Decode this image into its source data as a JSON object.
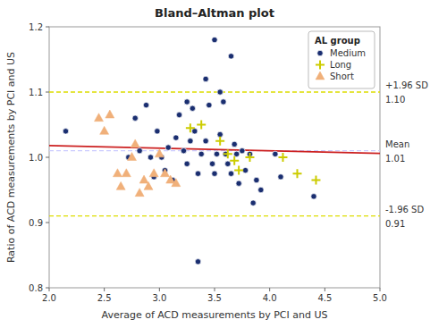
{
  "chart_data": {
    "type": "scatter",
    "title": "Bland–Altman plot",
    "xlabel": "Average of ACD measurements by PCI and US",
    "ylabel": "Ratio of ACD measurements by PCI and US",
    "xlim": [
      2.0,
      5.0
    ],
    "ylim": [
      0.8,
      1.2
    ],
    "xticks": [
      {
        "value": 2.0,
        "label": "2.0"
      },
      2.5,
      {
        "value": 3.0,
        "label": "3.0"
      },
      3.5,
      {
        "value": 4.0,
        "label": "4.0"
      },
      4.5,
      {
        "value": 5.0,
        "label": "5.0"
      }
    ],
    "yticks": [
      0.8,
      0.9,
      {
        "value": 1.0,
        "label": "1.0"
      },
      1.1,
      1.2
    ],
    "grid": false,
    "legend": "upper right",
    "legend_title": "AL group",
    "series": [
      {
        "name": "Medium",
        "color": "#1a2e70",
        "marker": "circle",
        "x": [
          2.15,
          2.72,
          2.78,
          2.82,
          2.88,
          2.92,
          2.95,
          2.98,
          3.02,
          3.05,
          3.08,
          3.12,
          3.15,
          3.18,
          3.22,
          3.25,
          3.28,
          3.3,
          3.32,
          3.35,
          3.38,
          3.42,
          3.45,
          3.48,
          3.5,
          3.52,
          3.55,
          3.58,
          3.6,
          3.62,
          3.65,
          3.68,
          3.7,
          3.72,
          3.75,
          3.78,
          3.82,
          3.85,
          3.88,
          3.92,
          4.05,
          4.1,
          4.4,
          3.5,
          3.65,
          3.42,
          3.55,
          3.25,
          3.35
        ],
        "values": [
          1.04,
          1.0,
          1.06,
          1.01,
          1.08,
          1.0,
          0.97,
          1.04,
          1.0,
          0.98,
          1.015,
          0.965,
          1.03,
          1.065,
          1.01,
          0.99,
          1.025,
          1.075,
          1.04,
          0.975,
          1.005,
          1.025,
          1.08,
          0.99,
          0.975,
          1.005,
          1.035,
          1.085,
          1.005,
          0.99,
          0.975,
          1.02,
          1.005,
          0.96,
          1.01,
          0.98,
          1.005,
          0.93,
          0.965,
          0.95,
          1.005,
          0.97,
          0.94,
          1.18,
          1.155,
          1.12,
          1.1,
          1.085,
          0.84
        ]
      },
      {
        "name": "Long",
        "color": "#cccc00",
        "marker": "plus",
        "x": [
          3.28,
          3.38,
          3.55,
          3.62,
          3.68,
          3.72,
          3.82,
          4.12,
          4.25,
          4.42
        ],
        "values": [
          1.045,
          1.05,
          1.025,
          1.005,
          0.995,
          0.98,
          1.0,
          1.0,
          0.975,
          0.965
        ]
      },
      {
        "name": "Short",
        "color": "#f0b07a",
        "marker": "triangle",
        "x": [
          2.45,
          2.5,
          2.55,
          2.62,
          2.65,
          2.7,
          2.75,
          2.78,
          2.82,
          2.86,
          2.9,
          2.95,
          3.0,
          3.05,
          3.1,
          3.15
        ],
        "values": [
          1.06,
          1.04,
          1.065,
          0.975,
          0.955,
          0.975,
          1.0,
          1.02,
          0.945,
          0.965,
          0.955,
          0.975,
          1.005,
          0.975,
          0.965,
          0.96
        ]
      }
    ],
    "reference_lines": [
      {
        "value": 1.1,
        "label": "+1.96 SD",
        "value_label": "1.10",
        "color": "#dddd00",
        "line_style": "dashed"
      },
      {
        "value": 1.01,
        "label": "Mean",
        "value_label": "1.01",
        "color": "#ccccff",
        "line_style": "dashed"
      },
      {
        "value": 0.91,
        "label": "-1.96 SD",
        "value_label": "0.91",
        "color": "#dddd00",
        "line_style": "dashed"
      }
    ],
    "trend_line": {
      "x": [
        2.0,
        5.0
      ],
      "values": [
        1.018,
        1.006
      ],
      "color": "#cc2020",
      "line_style": "solid"
    }
  }
}
